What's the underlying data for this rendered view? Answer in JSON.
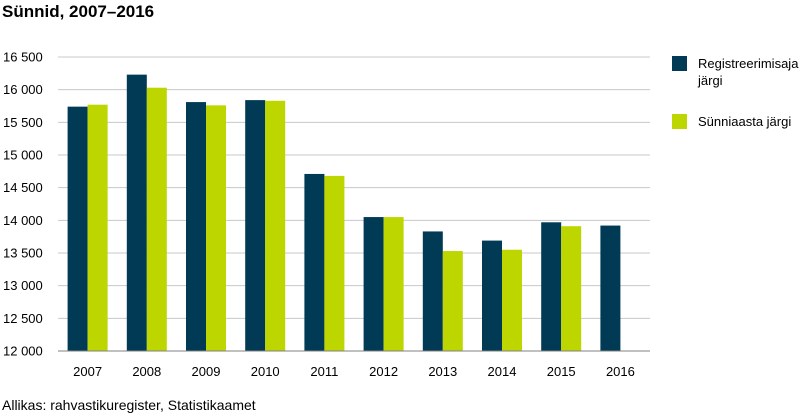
{
  "title": "Sünnid, 2007–2016",
  "source": "Allikas: rahvastikuregister, Statistikaamet",
  "chart_data": {
    "type": "bar",
    "title": "Sünnid, 2007–2016",
    "xlabel": "",
    "ylabel": "",
    "categories": [
      "2007",
      "2008",
      "2009",
      "2010",
      "2011",
      "2012",
      "2013",
      "2014",
      "2015",
      "2016"
    ],
    "series": [
      {
        "name": "Registreerimisaja järgi",
        "color": "#003a54",
        "values": [
          15740,
          16230,
          15810,
          15840,
          14710,
          14050,
          13830,
          13690,
          13970,
          13920
        ]
      },
      {
        "name": "Sünniaasta järgi",
        "color": "#bed600",
        "values": [
          15770,
          16030,
          15760,
          15830,
          14680,
          14050,
          13530,
          13550,
          13910,
          null
        ]
      }
    ],
    "ylim": [
      12000,
      16500
    ],
    "yticks": [
      12000,
      12500,
      13000,
      13500,
      14000,
      14500,
      15000,
      15500,
      16000,
      16500
    ],
    "ytick_labels": [
      "12 000",
      "12 500",
      "13 000",
      "13 500",
      "14 000",
      "14 500",
      "15 000",
      "15 500",
      "16 000",
      "16 500"
    ],
    "grid": true,
    "legend_position": "right"
  }
}
